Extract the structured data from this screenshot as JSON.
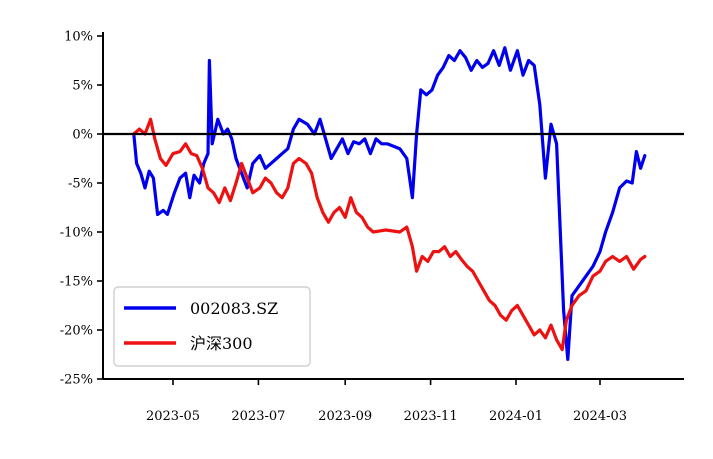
{
  "chart_data": {
    "type": "line",
    "title": "",
    "xlabel": "",
    "ylabel": "",
    "ylim": [
      -25,
      10
    ],
    "yticks": [
      10,
      5,
      0,
      -5,
      -10,
      -15,
      -20,
      -25
    ],
    "ytick_labels": [
      "10%",
      "5%",
      "0%",
      "-5%",
      "-10%",
      "-15%",
      "-20%",
      "-25%"
    ],
    "xlim": [
      "2023-03-12",
      "2024-04-30"
    ],
    "xticks": [
      "2023-05-01",
      "2023-07-01",
      "2023-09-01",
      "2023-11-01",
      "2024-01-01",
      "2024-03-01"
    ],
    "xtick_labels": [
      "2023-05",
      "2023-07",
      "2023-09",
      "2023-11",
      "2024-01",
      "2024-03"
    ],
    "zero_line": true,
    "grid": false,
    "legend": "lower-left",
    "series": [
      {
        "name": "002083.SZ",
        "color": "#0000ee",
        "points": [
          [
            "2023-04-03",
            0.0
          ],
          [
            "2023-04-05",
            -3.0
          ],
          [
            "2023-04-08",
            -4.0
          ],
          [
            "2023-04-11",
            -5.5
          ],
          [
            "2023-04-14",
            -3.8
          ],
          [
            "2023-04-17",
            -4.5
          ],
          [
            "2023-04-20",
            -8.2
          ],
          [
            "2023-04-24",
            -7.8
          ],
          [
            "2023-04-27",
            -8.2
          ],
          [
            "2023-05-02",
            -6.0
          ],
          [
            "2023-05-06",
            -4.5
          ],
          [
            "2023-05-10",
            -4.0
          ],
          [
            "2023-05-13",
            -6.5
          ],
          [
            "2023-05-16",
            -4.2
          ],
          [
            "2023-05-20",
            -5.0
          ],
          [
            "2023-05-23",
            -3.0
          ],
          [
            "2023-05-26",
            -2.0
          ],
          [
            "2023-05-27",
            7.5
          ],
          [
            "2023-05-29",
            -1.0
          ],
          [
            "2023-06-02",
            1.5
          ],
          [
            "2023-06-06",
            0.0
          ],
          [
            "2023-06-09",
            0.5
          ],
          [
            "2023-06-12",
            -0.5
          ],
          [
            "2023-06-15",
            -2.5
          ],
          [
            "2023-06-19",
            -4.0
          ],
          [
            "2023-06-23",
            -5.5
          ],
          [
            "2023-06-27",
            -3.0
          ],
          [
            "2023-07-02",
            -2.2
          ],
          [
            "2023-07-06",
            -3.5
          ],
          [
            "2023-07-10",
            -3.0
          ],
          [
            "2023-07-14",
            -2.5
          ],
          [
            "2023-07-18",
            -2.0
          ],
          [
            "2023-07-22",
            -1.5
          ],
          [
            "2023-07-26",
            0.5
          ],
          [
            "2023-07-30",
            1.5
          ],
          [
            "2023-08-05",
            1.0
          ],
          [
            "2023-08-10",
            0.0
          ],
          [
            "2023-08-14",
            1.5
          ],
          [
            "2023-08-18",
            -0.5
          ],
          [
            "2023-08-22",
            -2.5
          ],
          [
            "2023-08-26",
            -1.5
          ],
          [
            "2023-08-30",
            -0.5
          ],
          [
            "2023-09-03",
            -2.0
          ],
          [
            "2023-09-07",
            -0.8
          ],
          [
            "2023-09-11",
            -1.0
          ],
          [
            "2023-09-15",
            -0.5
          ],
          [
            "2023-09-19",
            -2.0
          ],
          [
            "2023-09-23",
            -0.5
          ],
          [
            "2023-09-27",
            -1.0
          ],
          [
            "2023-10-01",
            -1.0
          ],
          [
            "2023-10-10",
            -1.5
          ],
          [
            "2023-10-15",
            -2.5
          ],
          [
            "2023-10-19",
            -6.5
          ],
          [
            "2023-10-22",
            0.0
          ],
          [
            "2023-10-25",
            4.5
          ],
          [
            "2023-10-29",
            4.0
          ],
          [
            "2023-11-02",
            4.5
          ],
          [
            "2023-11-06",
            6.0
          ],
          [
            "2023-11-10",
            6.8
          ],
          [
            "2023-11-14",
            8.0
          ],
          [
            "2023-11-18",
            7.5
          ],
          [
            "2023-11-22",
            8.5
          ],
          [
            "2023-11-26",
            7.8
          ],
          [
            "2023-11-30",
            6.5
          ],
          [
            "2023-12-04",
            7.5
          ],
          [
            "2023-12-08",
            6.8
          ],
          [
            "2023-12-12",
            7.2
          ],
          [
            "2023-12-16",
            8.5
          ],
          [
            "2023-12-20",
            7.0
          ],
          [
            "2023-12-24",
            8.8
          ],
          [
            "2023-12-28",
            6.5
          ],
          [
            "2024-01-02",
            8.5
          ],
          [
            "2024-01-06",
            6.0
          ],
          [
            "2024-01-10",
            7.5
          ],
          [
            "2024-01-14",
            7.0
          ],
          [
            "2024-01-18",
            3.0
          ],
          [
            "2024-01-22",
            -4.5
          ],
          [
            "2024-01-26",
            1.0
          ],
          [
            "2024-01-30",
            -1.0
          ],
          [
            "2024-02-04",
            -18.0
          ],
          [
            "2024-02-07",
            -23.0
          ],
          [
            "2024-02-10",
            -16.5
          ],
          [
            "2024-02-15",
            -15.5
          ],
          [
            "2024-02-20",
            -14.5
          ],
          [
            "2024-02-25",
            -13.5
          ],
          [
            "2024-03-01",
            -12.0
          ],
          [
            "2024-03-05",
            -10.0
          ],
          [
            "2024-03-10",
            -8.0
          ],
          [
            "2024-03-15",
            -5.5
          ],
          [
            "2024-03-20",
            -4.8
          ],
          [
            "2024-03-24",
            -5.0
          ],
          [
            "2024-03-27",
            -1.8
          ],
          [
            "2024-03-30",
            -3.5
          ],
          [
            "2024-04-02",
            -2.2
          ]
        ]
      },
      {
        "name": "沪深300",
        "color": "#ee1111",
        "points": [
          [
            "2023-04-03",
            0.0
          ],
          [
            "2023-04-07",
            0.5
          ],
          [
            "2023-04-11",
            0.0
          ],
          [
            "2023-04-15",
            1.5
          ],
          [
            "2023-04-18",
            -0.5
          ],
          [
            "2023-04-22",
            -2.5
          ],
          [
            "2023-04-26",
            -3.2
          ],
          [
            "2023-05-01",
            -2.0
          ],
          [
            "2023-05-06",
            -1.8
          ],
          [
            "2023-05-10",
            -1.0
          ],
          [
            "2023-05-14",
            -2.0
          ],
          [
            "2023-05-18",
            -2.2
          ],
          [
            "2023-05-22",
            -3.5
          ],
          [
            "2023-05-26",
            -5.5
          ],
          [
            "2023-05-30",
            -6.0
          ],
          [
            "2023-06-03",
            -7.0
          ],
          [
            "2023-06-07",
            -5.5
          ],
          [
            "2023-06-11",
            -6.8
          ],
          [
            "2023-06-15",
            -5.0
          ],
          [
            "2023-06-19",
            -3.0
          ],
          [
            "2023-06-23",
            -4.5
          ],
          [
            "2023-06-27",
            -6.0
          ],
          [
            "2023-07-02",
            -5.5
          ],
          [
            "2023-07-06",
            -4.5
          ],
          [
            "2023-07-10",
            -5.0
          ],
          [
            "2023-07-14",
            -6.0
          ],
          [
            "2023-07-18",
            -6.5
          ],
          [
            "2023-07-22",
            -5.5
          ],
          [
            "2023-07-26",
            -3.0
          ],
          [
            "2023-07-30",
            -2.5
          ],
          [
            "2023-08-04",
            -3.0
          ],
          [
            "2023-08-08",
            -4.0
          ],
          [
            "2023-08-12",
            -6.5
          ],
          [
            "2023-08-16",
            -8.0
          ],
          [
            "2023-08-20",
            -9.0
          ],
          [
            "2023-08-24",
            -8.0
          ],
          [
            "2023-08-28",
            -7.5
          ],
          [
            "2023-09-01",
            -8.5
          ],
          [
            "2023-09-05",
            -6.5
          ],
          [
            "2023-09-09",
            -8.0
          ],
          [
            "2023-09-13",
            -8.5
          ],
          [
            "2023-09-17",
            -9.5
          ],
          [
            "2023-09-21",
            -10.0
          ],
          [
            "2023-09-30",
            -9.8
          ],
          [
            "2023-10-05",
            -9.9
          ],
          [
            "2023-10-10",
            -10.0
          ],
          [
            "2023-10-15",
            -9.5
          ],
          [
            "2023-10-19",
            -11.5
          ],
          [
            "2023-10-22",
            -14.0
          ],
          [
            "2023-10-26",
            -12.5
          ],
          [
            "2023-10-30",
            -13.0
          ],
          [
            "2023-11-03",
            -12.0
          ],
          [
            "2023-11-07",
            -12.0
          ],
          [
            "2023-11-11",
            -11.5
          ],
          [
            "2023-11-15",
            -12.5
          ],
          [
            "2023-11-19",
            -12.0
          ],
          [
            "2023-11-23",
            -12.8
          ],
          [
            "2023-11-27",
            -13.5
          ],
          [
            "2023-12-01",
            -14.0
          ],
          [
            "2023-12-05",
            -15.0
          ],
          [
            "2023-12-09",
            -16.0
          ],
          [
            "2023-12-13",
            -17.0
          ],
          [
            "2023-12-17",
            -17.5
          ],
          [
            "2023-12-21",
            -18.5
          ],
          [
            "2023-12-25",
            -19.0
          ],
          [
            "2023-12-29",
            -18.0
          ],
          [
            "2024-01-02",
            -17.5
          ],
          [
            "2024-01-06",
            -18.5
          ],
          [
            "2024-01-10",
            -19.5
          ],
          [
            "2024-01-14",
            -20.5
          ],
          [
            "2024-01-18",
            -20.0
          ],
          [
            "2024-01-22",
            -20.8
          ],
          [
            "2024-01-26",
            -19.5
          ],
          [
            "2024-01-30",
            -21.0
          ],
          [
            "2024-02-03",
            -22.0
          ],
          [
            "2024-02-06",
            -19.0
          ],
          [
            "2024-02-10",
            -17.5
          ],
          [
            "2024-02-15",
            -16.5
          ],
          [
            "2024-02-20",
            -16.0
          ],
          [
            "2024-02-25",
            -14.5
          ],
          [
            "2024-03-01",
            -14.0
          ],
          [
            "2024-03-05",
            -13.0
          ],
          [
            "2024-03-10",
            -12.5
          ],
          [
            "2024-03-15",
            -13.0
          ],
          [
            "2024-03-20",
            -12.5
          ],
          [
            "2024-03-25",
            -13.8
          ],
          [
            "2024-03-30",
            -12.8
          ],
          [
            "2024-04-02",
            -12.5
          ]
        ]
      }
    ]
  }
}
